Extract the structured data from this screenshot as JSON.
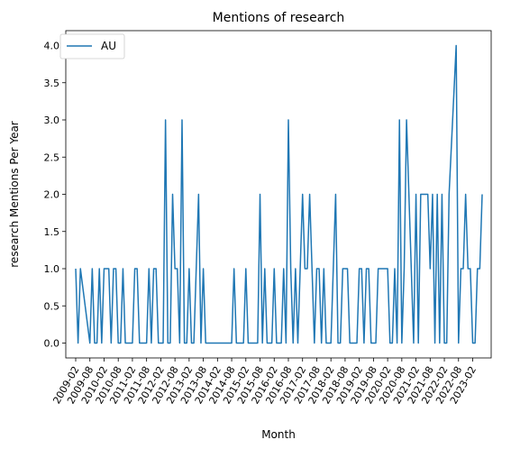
{
  "chart_data": {
    "type": "line",
    "title": "Mentions of research",
    "xlabel": "Month",
    "ylabel": "research Mentions Per Year",
    "ylim": [
      -0.2,
      4.2
    ],
    "yticks": [
      "0.0",
      "0.5",
      "1.0",
      "1.5",
      "2.0",
      "2.5",
      "3.0",
      "3.5",
      "4.0"
    ],
    "xtick_labels": [
      "2009-02",
      "2009-08",
      "2010-02",
      "2010-08",
      "2011-02",
      "2011-08",
      "2012-02",
      "2012-08",
      "2013-02",
      "2013-08",
      "2014-02",
      "2014-08",
      "2015-02",
      "2015-08",
      "2016-02",
      "2016-08",
      "2017-02",
      "2017-08",
      "2018-02",
      "2018-08",
      "2019-02",
      "2019-08",
      "2020-02",
      "2020-08",
      "2021-02",
      "2021-08",
      "2022-02",
      "2022-08",
      "2023-02"
    ],
    "legend": {
      "position": "top-left"
    },
    "grid": false,
    "series": [
      {
        "name": "AU",
        "color": "#1f77b4",
        "points": [
          [
            "2009-02",
            1
          ],
          [
            "2009-03",
            0
          ],
          [
            "2009-04",
            1
          ],
          [
            "2009-08",
            0
          ],
          [
            "2009-09",
            1
          ],
          [
            "2009-10",
            0
          ],
          [
            "2009-11",
            0
          ],
          [
            "2009-12",
            1
          ],
          [
            "2010-01",
            0
          ],
          [
            "2010-02",
            1
          ],
          [
            "2010-03",
            1
          ],
          [
            "2010-04",
            1
          ],
          [
            "2010-05",
            0
          ],
          [
            "2010-06",
            1
          ],
          [
            "2010-07",
            1
          ],
          [
            "2010-08",
            0
          ],
          [
            "2010-09",
            0
          ],
          [
            "2010-10",
            1
          ],
          [
            "2010-11",
            0
          ],
          [
            "2011-02",
            0
          ],
          [
            "2011-03",
            1
          ],
          [
            "2011-04",
            1
          ],
          [
            "2011-05",
            0
          ],
          [
            "2011-06",
            0
          ],
          [
            "2011-08",
            0
          ],
          [
            "2011-09",
            1
          ],
          [
            "2011-10",
            0
          ],
          [
            "2011-11",
            1
          ],
          [
            "2011-12",
            1
          ],
          [
            "2012-01",
            0
          ],
          [
            "2012-02",
            0
          ],
          [
            "2012-03",
            0
          ],
          [
            "2012-04",
            3
          ],
          [
            "2012-05",
            0
          ],
          [
            "2012-06",
            0
          ],
          [
            "2012-07",
            2
          ],
          [
            "2012-08",
            1
          ],
          [
            "2012-09",
            1
          ],
          [
            "2012-10",
            0
          ],
          [
            "2012-11",
            3
          ],
          [
            "2012-12",
            0
          ],
          [
            "2013-01",
            0
          ],
          [
            "2013-02",
            1
          ],
          [
            "2013-03",
            0
          ],
          [
            "2013-04",
            0
          ],
          [
            "2013-05",
            1
          ],
          [
            "2013-06",
            2
          ],
          [
            "2013-07",
            0
          ],
          [
            "2013-08",
            1
          ],
          [
            "2013-09",
            0
          ],
          [
            "2014-08",
            0
          ],
          [
            "2014-09",
            1
          ],
          [
            "2014-10",
            0
          ],
          [
            "2015-01",
            0
          ],
          [
            "2015-02",
            1
          ],
          [
            "2015-03",
            0
          ],
          [
            "2015-07",
            0
          ],
          [
            "2015-08",
            2
          ],
          [
            "2015-09",
            0
          ],
          [
            "2015-10",
            1
          ],
          [
            "2015-11",
            0
          ],
          [
            "2016-01",
            0
          ],
          [
            "2016-02",
            1
          ],
          [
            "2016-03",
            0
          ],
          [
            "2016-05",
            0
          ],
          [
            "2016-06",
            1
          ],
          [
            "2016-07",
            0
          ],
          [
            "2016-08",
            3
          ],
          [
            "2016-09",
            1
          ],
          [
            "2016-10",
            0
          ],
          [
            "2016-11",
            1
          ],
          [
            "2016-12",
            0
          ],
          [
            "2017-02",
            2
          ],
          [
            "2017-03",
            1
          ],
          [
            "2017-04",
            1
          ],
          [
            "2017-05",
            2
          ],
          [
            "2017-06",
            1
          ],
          [
            "2017-07",
            0
          ],
          [
            "2017-08",
            1
          ],
          [
            "2017-09",
            1
          ],
          [
            "2017-10",
            0
          ],
          [
            "2017-11",
            1
          ],
          [
            "2017-12",
            0
          ],
          [
            "2018-02",
            0
          ],
          [
            "2018-03",
            1
          ],
          [
            "2018-04",
            2
          ],
          [
            "2018-05",
            0
          ],
          [
            "2018-06",
            0
          ],
          [
            "2018-07",
            1
          ],
          [
            "2018-08",
            1
          ],
          [
            "2018-09",
            1
          ],
          [
            "2018-10",
            0
          ],
          [
            "2018-11",
            0
          ],
          [
            "2019-01",
            0
          ],
          [
            "2019-02",
            1
          ],
          [
            "2019-03",
            1
          ],
          [
            "2019-04",
            0
          ],
          [
            "2019-05",
            1
          ],
          [
            "2019-06",
            1
          ],
          [
            "2019-07",
            0
          ],
          [
            "2019-08",
            0
          ],
          [
            "2019-09",
            0
          ],
          [
            "2019-10",
            1
          ],
          [
            "2019-11",
            1
          ],
          [
            "2019-12",
            1
          ],
          [
            "2020-02",
            1
          ],
          [
            "2020-03",
            0
          ],
          [
            "2020-04",
            0
          ],
          [
            "2020-05",
            1
          ],
          [
            "2020-06",
            0
          ],
          [
            "2020-07",
            3
          ],
          [
            "2020-08",
            0
          ],
          [
            "2020-09",
            1
          ],
          [
            "2020-10",
            3
          ],
          [
            "2021-01",
            0
          ],
          [
            "2021-02",
            2
          ],
          [
            "2021-03",
            0
          ],
          [
            "2021-04",
            2
          ],
          [
            "2021-05",
            2
          ],
          [
            "2021-06",
            2
          ],
          [
            "2021-07",
            2
          ],
          [
            "2021-08",
            1
          ],
          [
            "2021-09",
            2
          ],
          [
            "2021-10",
            0
          ],
          [
            "2021-11",
            2
          ],
          [
            "2021-12",
            0
          ],
          [
            "2022-01",
            2
          ],
          [
            "2022-02",
            0
          ],
          [
            "2022-03",
            0
          ],
          [
            "2022-04",
            2
          ],
          [
            "2022-07",
            4
          ],
          [
            "2022-08",
            0
          ],
          [
            "2022-09",
            1
          ],
          [
            "2022-10",
            1
          ],
          [
            "2022-11",
            2
          ],
          [
            "2022-12",
            1
          ],
          [
            "2023-01",
            1
          ],
          [
            "2023-02",
            0
          ],
          [
            "2023-03",
            0
          ],
          [
            "2023-04",
            1
          ],
          [
            "2023-05",
            1
          ],
          [
            "2023-06",
            2
          ]
        ]
      }
    ]
  }
}
